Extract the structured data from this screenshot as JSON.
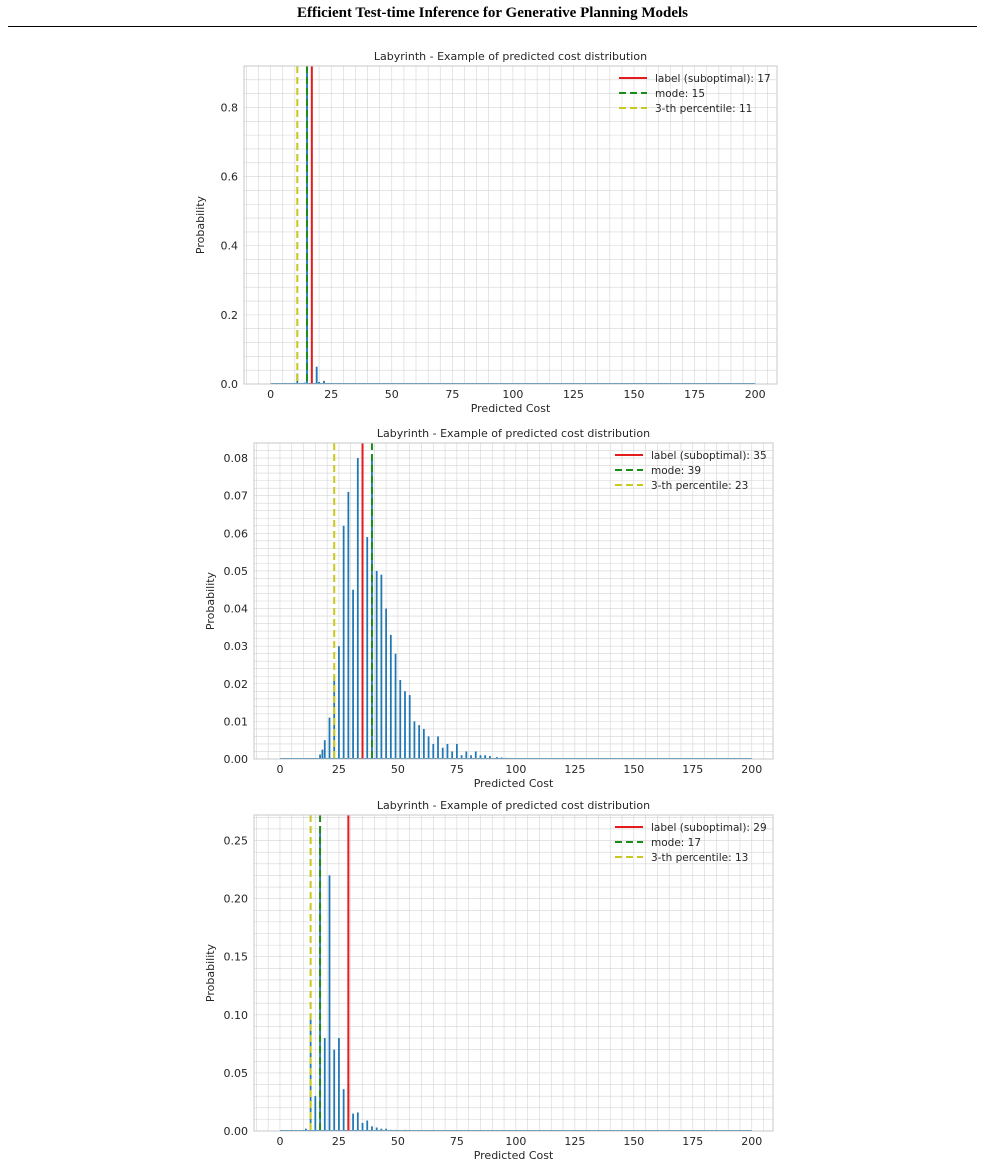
{
  "page": {
    "header": "Efficient Test-time Inference for Generative Planning Models"
  },
  "colors": {
    "bar": "#1f77b4",
    "label_line": "#e41a1c",
    "mode_line": "#1a8c1a",
    "percentile_line": "#c8c81e",
    "grid": "#d4d4d4",
    "axes_edge": "#c8c8c8"
  },
  "chart_data": [
    {
      "type": "bar",
      "title": "Labyrinth - Example of predicted cost distribution",
      "xlabel": "Predicted Cost",
      "ylabel": "Probability",
      "xlim": [
        -11,
        209
      ],
      "ylim": [
        0,
        0.92
      ],
      "xticks": [
        0,
        25,
        50,
        75,
        100,
        125,
        150,
        175,
        200
      ],
      "yticks": [
        0.0,
        0.2,
        0.4,
        0.6,
        0.8
      ],
      "yticklabels": [
        "0.0",
        "0.2",
        "0.4",
        "0.6",
        "0.8"
      ],
      "grid": true,
      "legend_position": "top-right",
      "x": [
        10,
        11,
        12,
        13,
        14,
        15,
        16,
        17,
        18,
        19,
        20,
        21,
        22,
        23,
        24,
        25,
        26,
        27,
        28,
        29,
        30,
        31,
        32,
        33
      ],
      "values": [
        0.002,
        0.03,
        0.001,
        0.002,
        0.004,
        0.9,
        0.003,
        0.002,
        0.003,
        0.05,
        0.006,
        0.001,
        0.009,
        0.001,
        0.003,
        0.002,
        0.001,
        0.001,
        0.002,
        0.001,
        0.001,
        0.001,
        0.002,
        0.001
      ],
      "lines": [
        {
          "key": "label",
          "label": "label (suboptimal): 17",
          "x": 17,
          "style": "solid"
        },
        {
          "key": "mode",
          "label": "mode: 15",
          "x": 15,
          "style": "dashed"
        },
        {
          "key": "percentile",
          "label": "3-th percentile: 11",
          "x": 11,
          "style": "dashed"
        }
      ]
    },
    {
      "type": "bar",
      "title": "Labyrinth - Example of predicted cost distribution",
      "xlabel": "Predicted Cost",
      "ylabel": "Probability",
      "xlim": [
        -11,
        209
      ],
      "ylim": [
        0,
        0.084
      ],
      "xticks": [
        0,
        25,
        50,
        75,
        100,
        125,
        150,
        175,
        200
      ],
      "yticks": [
        0.0,
        0.01,
        0.02,
        0.03,
        0.04,
        0.05,
        0.06,
        0.07,
        0.08
      ],
      "yticklabels": [
        "0.00",
        "0.01",
        "0.02",
        "0.03",
        "0.04",
        "0.05",
        "0.06",
        "0.07",
        "0.08"
      ],
      "grid": true,
      "legend_position": "top-right",
      "x": [
        17,
        18,
        19,
        20,
        21,
        22,
        23,
        24,
        25,
        26,
        27,
        28,
        29,
        30,
        31,
        32,
        33,
        34,
        35,
        36,
        37,
        38,
        39,
        40,
        41,
        42,
        43,
        44,
        45,
        46,
        47,
        48,
        49,
        50,
        51,
        52,
        53,
        54,
        55,
        56,
        57,
        58,
        59,
        60,
        61,
        62,
        63,
        64,
        65,
        66,
        67,
        68,
        69,
        70,
        71,
        72,
        73,
        74,
        75,
        76,
        77,
        78,
        79,
        80,
        81,
        82,
        83,
        84,
        85,
        86,
        87,
        88,
        89,
        90,
        92,
        94,
        96,
        98,
        100,
        102,
        104
      ],
      "values": [
        0.0012,
        0.0025,
        0.005,
        0.0,
        0.011,
        0.0,
        0.022,
        0.0,
        0.03,
        0.0,
        0.062,
        0.0,
        0.071,
        0.0,
        0.045,
        0.0,
        0.08,
        0.0,
        0.058,
        0.0,
        0.059,
        0.0,
        0.08,
        0.0,
        0.05,
        0.0,
        0.049,
        0.0,
        0.04,
        0.0,
        0.033,
        0.0,
        0.028,
        0.0,
        0.021,
        0.0,
        0.018,
        0.0,
        0.017,
        0.0,
        0.01,
        0.0,
        0.009,
        0.0,
        0.008,
        0.0,
        0.006,
        0.0,
        0.004,
        0.0,
        0.006,
        0.0,
        0.003,
        0.0,
        0.004,
        0.0,
        0.002,
        0.0,
        0.004,
        0.0,
        0.001,
        0.0,
        0.002,
        0.0,
        0.001,
        0.0,
        0.002,
        0.0,
        0.001,
        0.0,
        0.001,
        0.0,
        0.0008,
        0.0,
        0.0005,
        0.0004,
        0.0003,
        0.0002,
        0.0002,
        0.0001,
        0.0001
      ],
      "lines": [
        {
          "key": "label",
          "label": "label (suboptimal): 35",
          "x": 35,
          "style": "solid"
        },
        {
          "key": "mode",
          "label": "mode: 39",
          "x": 39,
          "style": "dashed"
        },
        {
          "key": "percentile",
          "label": "3-th percentile: 23",
          "x": 23,
          "style": "dashed"
        }
      ]
    },
    {
      "type": "bar",
      "title": "Labyrinth - Example of predicted cost distribution",
      "xlabel": "Predicted Cost",
      "ylabel": "Probability",
      "xlim": [
        -11,
        209
      ],
      "ylim": [
        0,
        0.272
      ],
      "xticks": [
        0,
        25,
        50,
        75,
        100,
        125,
        150,
        175,
        200
      ],
      "yticks": [
        0.0,
        0.05,
        0.1,
        0.15,
        0.2,
        0.25
      ],
      "yticklabels": [
        "0.00",
        "0.05",
        "0.10",
        "0.15",
        "0.20",
        "0.25"
      ],
      "grid": true,
      "legend_position": "top-right",
      "x": [
        11,
        13,
        15,
        17,
        19,
        21,
        23,
        25,
        27,
        29,
        31,
        33,
        35,
        37,
        39,
        41,
        43,
        45,
        47,
        49,
        53
      ],
      "values": [
        0.002,
        0.1,
        0.03,
        0.26,
        0.08,
        0.22,
        0.07,
        0.08,
        0.036,
        0.04,
        0.015,
        0.016,
        0.007,
        0.009,
        0.004,
        0.003,
        0.002,
        0.002,
        0.001,
        0.001,
        0.001
      ],
      "lines": [
        {
          "key": "label",
          "label": "label (suboptimal): 29",
          "x": 29,
          "style": "solid"
        },
        {
          "key": "mode",
          "label": "mode: 17",
          "x": 17,
          "style": "dashed"
        },
        {
          "key": "percentile",
          "label": "3-th percentile: 13",
          "x": 13,
          "style": "dashed"
        }
      ]
    }
  ]
}
